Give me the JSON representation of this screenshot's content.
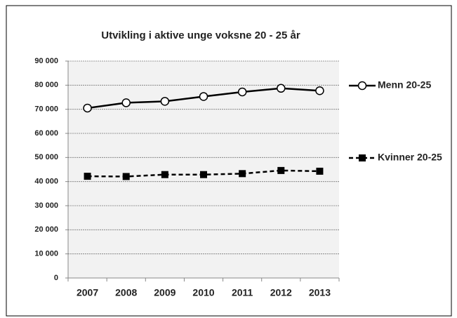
{
  "chart_data": {
    "type": "line",
    "title": "Utvikling i aktive unge voksne  20 - 25 år",
    "categories": [
      "2007",
      "2008",
      "2009",
      "2010",
      "2011",
      "2012",
      "2013"
    ],
    "series": [
      {
        "name": "Menn 20-25",
        "color": "#000000",
        "dashed": false,
        "marker": "circle",
        "values": [
          70500,
          72700,
          73300,
          75300,
          77200,
          78700,
          77700
        ]
      },
      {
        "name": "Kvinner 20-25",
        "color": "#000000",
        "dashed": true,
        "marker": "square",
        "values": [
          42200,
          42100,
          42900,
          42900,
          43300,
          44600,
          44300
        ]
      }
    ],
    "ylim": [
      0,
      90000
    ],
    "yticks": [
      0,
      {
        "value": 10000,
        "label": "10 000"
      },
      {
        "value": 20000,
        "label": "20 000"
      },
      {
        "value": 30000,
        "label": "30 000"
      },
      {
        "value": 40000,
        "label": "40 000"
      },
      {
        "value": 50000,
        "label": "50 000"
      },
      {
        "value": 60000,
        "label": "60 000"
      },
      {
        "value": 70000,
        "label": "70 000"
      },
      {
        "value": 80000,
        "label": "80 000"
      },
      {
        "value": 90000,
        "label": "90 000"
      }
    ],
    "grid": true,
    "legend": "right"
  }
}
